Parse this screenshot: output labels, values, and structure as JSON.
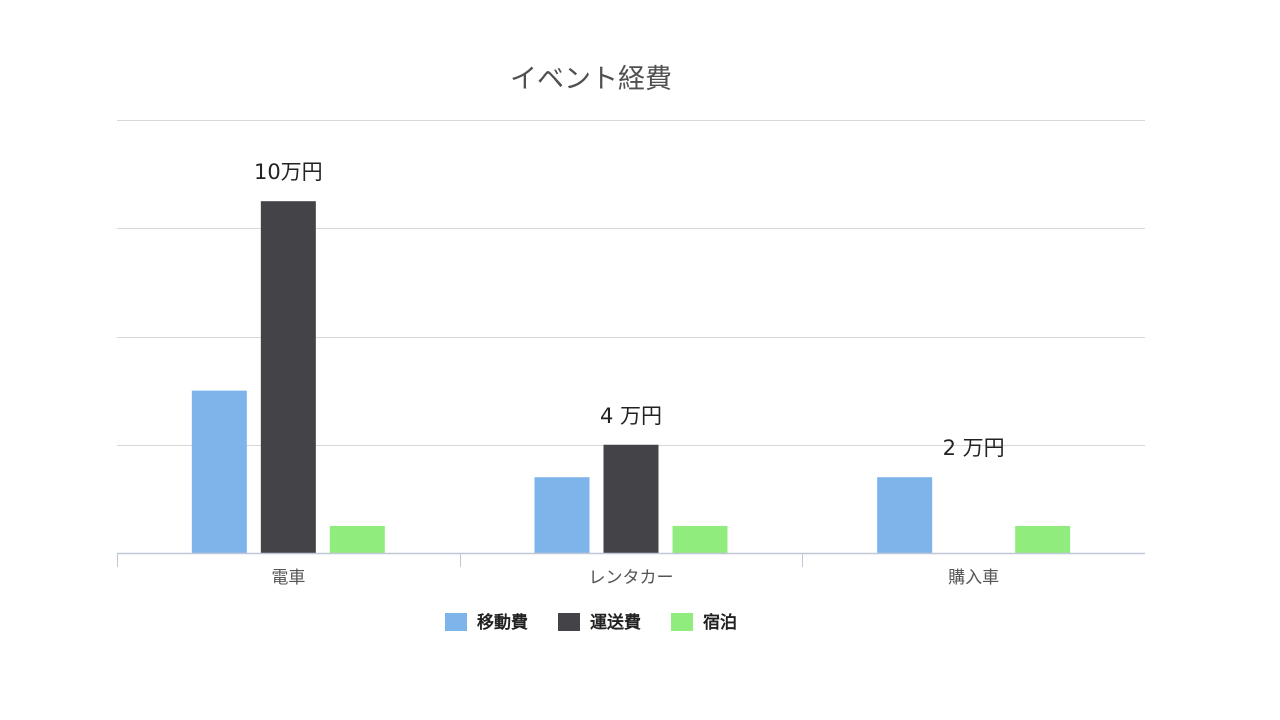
{
  "chart_data": {
    "type": "bar",
    "title": "イベント経費",
    "categories": [
      "電車",
      "レンタカー",
      "購入車"
    ],
    "series": [
      {
        "name": "移動費",
        "color": "#7db4ea",
        "values": [
          3.0,
          1.4,
          1.4
        ]
      },
      {
        "name": "運送費",
        "color": "#434348",
        "values": [
          6.5,
          2.0,
          0
        ]
      },
      {
        "name": "宿泊",
        "color": "#90ed7d",
        "values": [
          0.5,
          0.5,
          0.5
        ]
      }
    ],
    "annotations": [
      {
        "category": "電車",
        "text": "10万円"
      },
      {
        "category": "レンタカー",
        "text": "4 万円"
      },
      {
        "category": "購入車",
        "text": "2 万円"
      }
    ],
    "ylim": [
      0,
      8
    ],
    "yticks": [
      0,
      2,
      4,
      6,
      8
    ],
    "grid": true,
    "legend_position": "bottom"
  }
}
